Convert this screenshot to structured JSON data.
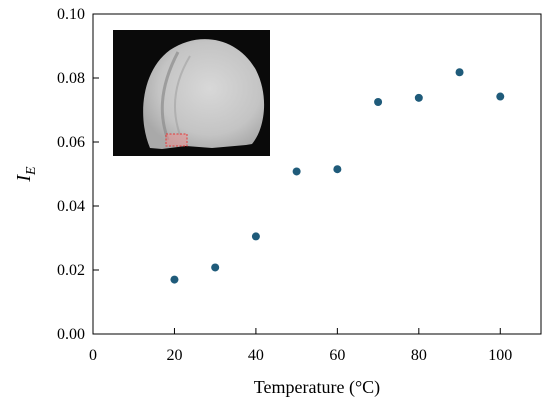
{
  "chart_data": {
    "type": "scatter",
    "xlabel": "Temperature (°C)",
    "ylabel": "I",
    "ylabel_subscript": "E",
    "xlim": [
      0,
      110
    ],
    "ylim": [
      0,
      0.1
    ],
    "xticks": [
      "0",
      "20",
      "40",
      "60",
      "80",
      "100"
    ],
    "yticks": [
      "0.00",
      "0.02",
      "0.04",
      "0.06",
      "0.08",
      "0.10"
    ],
    "grid": false,
    "series": [
      {
        "color": "#1f5b7a",
        "points": [
          {
            "x": 20,
            "y": 0.017
          },
          {
            "x": 30,
            "y": 0.0208
          },
          {
            "x": 40,
            "y": 0.0305
          },
          {
            "x": 50,
            "y": 0.0508
          },
          {
            "x": 60,
            "y": 0.0515
          },
          {
            "x": 70,
            "y": 0.0725
          },
          {
            "x": 80,
            "y": 0.0738
          },
          {
            "x": 90,
            "y": 0.0818
          },
          {
            "x": 100,
            "y": 0.0742
          }
        ]
      }
    ],
    "inset": {
      "content": "grayscale photo of a circular specimen with a red dashed rectangle marking a region near the bottom-left",
      "highlight_color": "#e23a3a"
    }
  }
}
